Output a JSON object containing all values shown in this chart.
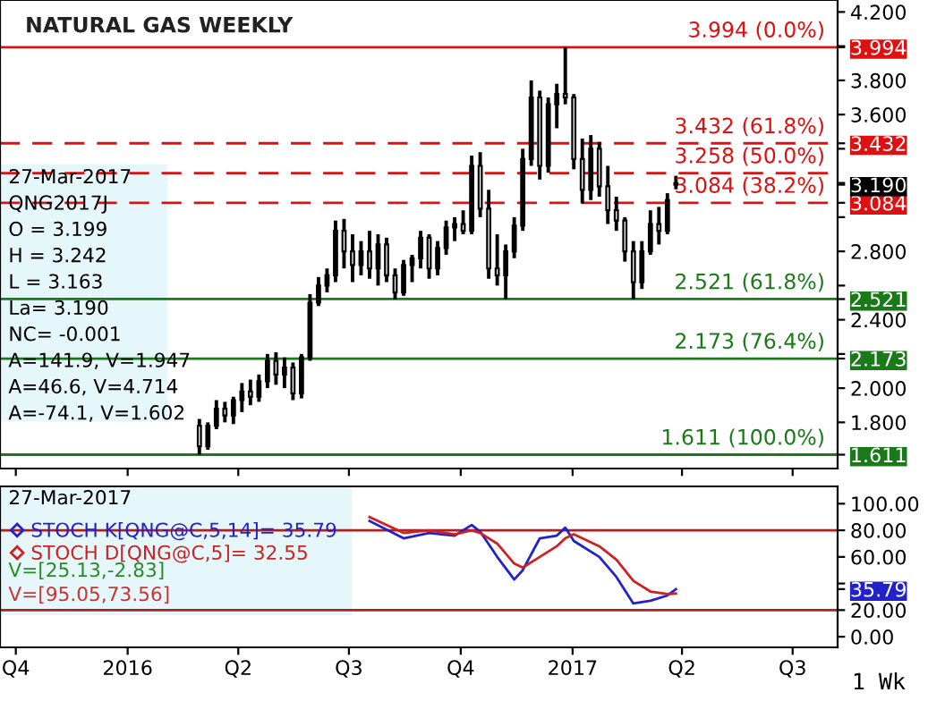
{
  "chart_data": [
    {
      "type": "candlestick",
      "title": "NATURAL GAS WEEKLY",
      "x": [
        "2016-02-29",
        "2016-03-07",
        "2016-03-14",
        "2016-03-21",
        "2016-03-28",
        "2016-04-04",
        "2016-04-11",
        "2016-04-18",
        "2016-04-25",
        "2016-05-02",
        "2016-05-09",
        "2016-05-16",
        "2016-05-23",
        "2016-05-30",
        "2016-06-06",
        "2016-06-13",
        "2016-06-20",
        "2016-06-27",
        "2016-07-04",
        "2016-07-11",
        "2016-07-18",
        "2016-07-25",
        "2016-08-01",
        "2016-08-08",
        "2016-08-15",
        "2016-08-22",
        "2016-08-29",
        "2016-09-05",
        "2016-09-12",
        "2016-09-19",
        "2016-09-26",
        "2016-10-03",
        "2016-10-10",
        "2016-10-17",
        "2016-10-24",
        "2016-10-31",
        "2016-11-07",
        "2016-11-14",
        "2016-11-21",
        "2016-11-28",
        "2016-12-05",
        "2016-12-12",
        "2016-12-19",
        "2016-12-26",
        "2017-01-02",
        "2017-01-09",
        "2017-01-16",
        "2017-01-23",
        "2017-01-30",
        "2017-02-06",
        "2017-02-13",
        "2017-02-20",
        "2017-02-27",
        "2017-03-06",
        "2017-03-13",
        "2017-03-20",
        "2017-03-27"
      ],
      "ohlc": [
        [
          1.78,
          1.82,
          1.611,
          1.66
        ],
        [
          1.66,
          1.8,
          1.64,
          1.78
        ],
        [
          1.78,
          1.93,
          1.76,
          1.88
        ],
        [
          1.88,
          1.92,
          1.8,
          1.84
        ],
        [
          1.84,
          1.95,
          1.79,
          1.93
        ],
        [
          1.93,
          2.03,
          1.86,
          1.98
        ],
        [
          1.98,
          2.05,
          1.9,
          1.95
        ],
        [
          1.95,
          2.08,
          1.92,
          2.04
        ],
        [
          2.04,
          2.2,
          2.0,
          2.16
        ],
        [
          2.16,
          2.21,
          2.02,
          2.08
        ],
        [
          2.08,
          2.18,
          2.0,
          2.12
        ],
        [
          2.12,
          2.15,
          1.93,
          1.97
        ],
        [
          1.97,
          2.2,
          1.94,
          2.18
        ],
        [
          2.18,
          2.55,
          2.16,
          2.5
        ],
        [
          2.5,
          2.65,
          2.48,
          2.6
        ],
        [
          2.6,
          2.7,
          2.56,
          2.66
        ],
        [
          2.66,
          2.98,
          2.62,
          2.92
        ],
        [
          2.92,
          2.99,
          2.7,
          2.8
        ],
        [
          2.8,
          2.9,
          2.62,
          2.72
        ],
        [
          2.72,
          2.86,
          2.66,
          2.8
        ],
        [
          2.8,
          2.92,
          2.64,
          2.7
        ],
        [
          2.7,
          2.9,
          2.6,
          2.84
        ],
        [
          2.84,
          2.88,
          2.62,
          2.66
        ],
        [
          2.66,
          2.7,
          2.52,
          2.56
        ],
        [
          2.56,
          2.75,
          2.54,
          2.72
        ],
        [
          2.72,
          2.78,
          2.62,
          2.76
        ],
        [
          2.76,
          2.92,
          2.7,
          2.88
        ],
        [
          2.88,
          2.9,
          2.64,
          2.7
        ],
        [
          2.7,
          2.86,
          2.66,
          2.82
        ],
        [
          2.82,
          2.98,
          2.78,
          2.94
        ],
        [
          2.94,
          3.0,
          2.86,
          2.96
        ],
        [
          2.96,
          3.04,
          2.9,
          2.92
        ],
        [
          2.92,
          3.36,
          2.9,
          3.3
        ],
        [
          3.3,
          3.38,
          3.0,
          3.05
        ],
        [
          3.05,
          3.16,
          2.64,
          2.7
        ],
        [
          2.7,
          2.9,
          2.6,
          2.66
        ],
        [
          2.66,
          2.84,
          2.521,
          2.8
        ],
        [
          2.8,
          3.0,
          2.76,
          2.95
        ],
        [
          2.95,
          3.4,
          2.92,
          3.34
        ],
        [
          3.34,
          3.8,
          3.3,
          3.7
        ],
        [
          3.7,
          3.74,
          3.22,
          3.3
        ],
        [
          3.3,
          3.7,
          3.26,
          3.66
        ],
        [
          3.66,
          3.78,
          3.52,
          3.72
        ],
        [
          3.72,
          3.994,
          3.66,
          3.7
        ],
        [
          3.7,
          3.72,
          3.28,
          3.34
        ],
        [
          3.34,
          3.46,
          3.08,
          3.16
        ],
        [
          3.16,
          3.48,
          3.1,
          3.4
        ],
        [
          3.4,
          3.44,
          3.12,
          3.18
        ],
        [
          3.18,
          3.3,
          2.96,
          3.04
        ],
        [
          3.04,
          3.12,
          2.92,
          2.98
        ],
        [
          2.98,
          3.0,
          2.74,
          2.8
        ],
        [
          2.8,
          2.86,
          2.521,
          2.62
        ],
        [
          2.62,
          2.86,
          2.58,
          2.8
        ],
        [
          2.8,
          3.04,
          2.78,
          2.96
        ],
        [
          2.96,
          3.06,
          2.84,
          2.92
        ],
        [
          2.92,
          3.14,
          2.9,
          3.1
        ],
        [
          3.199,
          3.242,
          3.163,
          3.19
        ]
      ],
      "xlim": [
        "2015-09-18",
        "2017-08-07"
      ],
      "xticks": [
        {
          "value": "2015-10-01",
          "label": null
        },
        {
          "value": "2016-01-01",
          "label": null
        },
        {
          "value": "2016-04-01",
          "label": null
        },
        {
          "value": "2016-07-01",
          "label": null
        },
        {
          "value": "2016-10-01",
          "label": null
        },
        {
          "value": "2017-01-01",
          "label": null
        },
        {
          "value": "2017-04-01",
          "label": null
        },
        {
          "value": "2017-07-01",
          "label": null
        }
      ],
      "ylim": [
        1.53,
        4.27
      ],
      "yticks": [
        {
          "value": 1.611,
          "label": "1.611"
        },
        {
          "value": 1.8,
          "label": "1.800"
        },
        {
          "value": 2.0,
          "label": "2.000"
        },
        {
          "value": 2.173,
          "label": "2.173"
        },
        {
          "value": 2.2,
          "label": null
        },
        {
          "value": 2.4,
          "label": "2.400"
        },
        {
          "value": 2.521,
          "label": "2.521"
        },
        {
          "value": 2.6,
          "label": null
        },
        {
          "value": 2.8,
          "label": "2.800"
        },
        {
          "value": 3.0,
          "label": null
        },
        {
          "value": 3.084,
          "label": "3.084"
        },
        {
          "value": 3.19,
          "label": "3.190"
        },
        {
          "value": 3.2,
          "label": null
        },
        {
          "value": 3.4,
          "label": null
        },
        {
          "value": 3.432,
          "label": "3.432"
        },
        {
          "value": 3.6,
          "label": "3.600"
        },
        {
          "value": 3.8,
          "label": "3.800"
        },
        {
          "value": 3.994,
          "label": "3.994"
        },
        {
          "value": 4.0,
          "label": null
        },
        {
          "value": 4.2,
          "label": "4.200"
        }
      ],
      "tick_labels": "y",
      "ref_lines": [
        {
          "axis": "y",
          "value": 3.994,
          "label": "3.994 (0.0%)",
          "color": "#dd1111",
          "line_style": "solid"
        },
        {
          "axis": "y",
          "value": 3.432,
          "label": "3.432 (61.8%)",
          "color": "#dd1111",
          "line_style": "dashed"
        },
        {
          "axis": "y",
          "value": 3.258,
          "label": "3.258 (50.0%)",
          "color": "#dd1111",
          "line_style": "dashed"
        },
        {
          "axis": "y",
          "value": 3.084,
          "label": "3.084 (38.2%)",
          "color": "#dd1111",
          "line_style": "dashed"
        },
        {
          "axis": "y",
          "value": 2.521,
          "label": "2.521 (61.8%)",
          "color": "#1a7a1a",
          "line_style": "solid"
        },
        {
          "axis": "y",
          "value": 2.173,
          "label": "2.173 (76.4%)",
          "color": "#1a7a1a",
          "line_style": "solid"
        },
        {
          "axis": "y",
          "value": 1.611,
          "label": "1.611 (100.0%)",
          "color": "#1a7a1a",
          "line_style": "solid"
        }
      ],
      "annotations": [
        "27-Mar-2017",
        "QNG2017J",
        "O = 3.199",
        "H = 3.242",
        "L = 3.163",
        "La= 3.190",
        "NC= -0.001",
        "A=141.9, V=1.947",
        "A=46.6, V=4.714",
        "A=-74.1, V=1.602"
      ]
    },
    {
      "type": "line",
      "xlabel": "1 Wk",
      "series": [
        {
          "name": "STOCH K[QNG@C,5,14]= 35.79",
          "color": "#2222cc",
          "x": [
            "2016-07-18",
            "2016-08-15",
            "2016-09-05",
            "2016-09-26",
            "2016-10-10",
            "2016-10-17",
            "2016-10-31",
            "2016-11-14",
            "2016-11-21",
            "2016-12-05",
            "2016-12-19",
            "2016-12-26",
            "2017-01-02",
            "2017-01-23",
            "2017-02-06",
            "2017-02-20",
            "2017-03-06",
            "2017-03-20",
            "2017-03-27"
          ],
          "values": [
            87,
            74,
            78,
            76,
            84,
            79,
            60,
            43,
            50,
            74,
            76,
            82,
            72,
            60,
            45,
            25,
            27,
            31,
            35.79
          ]
        },
        {
          "name": "STOCH D[QNG@C,5]= 32.55",
          "color": "#cc2222",
          "x": [
            "2016-07-18",
            "2016-08-15",
            "2016-09-05",
            "2016-09-26",
            "2016-10-10",
            "2016-10-17",
            "2016-10-31",
            "2016-11-14",
            "2016-11-21",
            "2016-12-05",
            "2016-12-19",
            "2016-12-26",
            "2017-01-02",
            "2017-01-23",
            "2017-02-06",
            "2017-02-20",
            "2017-03-06",
            "2017-03-20",
            "2017-03-27"
          ],
          "values": [
            90,
            78,
            80,
            77,
            80,
            78,
            70,
            55,
            52,
            60,
            68,
            74,
            77,
            68,
            58,
            42,
            34,
            32,
            32.55
          ]
        }
      ],
      "xlim": [
        "2015-09-18",
        "2017-08-07"
      ],
      "xticks": [
        {
          "value": "2015-10-01",
          "label": "Q4"
        },
        {
          "value": "2016-01-01",
          "label": "2016"
        },
        {
          "value": "2016-04-01",
          "label": "Q2"
        },
        {
          "value": "2016-07-01",
          "label": "Q3"
        },
        {
          "value": "2016-10-01",
          "label": "Q4"
        },
        {
          "value": "2017-01-01",
          "label": "2017"
        },
        {
          "value": "2017-04-01",
          "label": "Q2"
        },
        {
          "value": "2017-07-01",
          "label": "Q3"
        }
      ],
      "ylim": [
        -8,
        113
      ],
      "yticks": [
        {
          "value": 0,
          "label": "0.00"
        },
        {
          "value": 20,
          "label": "20.00"
        },
        {
          "value": 35.79,
          "label": "35.79"
        },
        {
          "value": 40,
          "label": null
        },
        {
          "value": 60,
          "label": "60.00"
        },
        {
          "value": 80,
          "label": "80.00"
        },
        {
          "value": 100,
          "label": "100.00"
        }
      ],
      "ref_lines": [
        {
          "axis": "y",
          "value": 80,
          "color": "#aa2222",
          "line_style": "solid"
        },
        {
          "axis": "y",
          "value": 20,
          "color": "#aa2222",
          "line_style": "solid"
        }
      ],
      "legend": "top left",
      "annotations": [
        "27-Mar-2017",
        "V=[25.13,-2.83]",
        "V=[95.05,73.56]"
      ]
    }
  ]
}
